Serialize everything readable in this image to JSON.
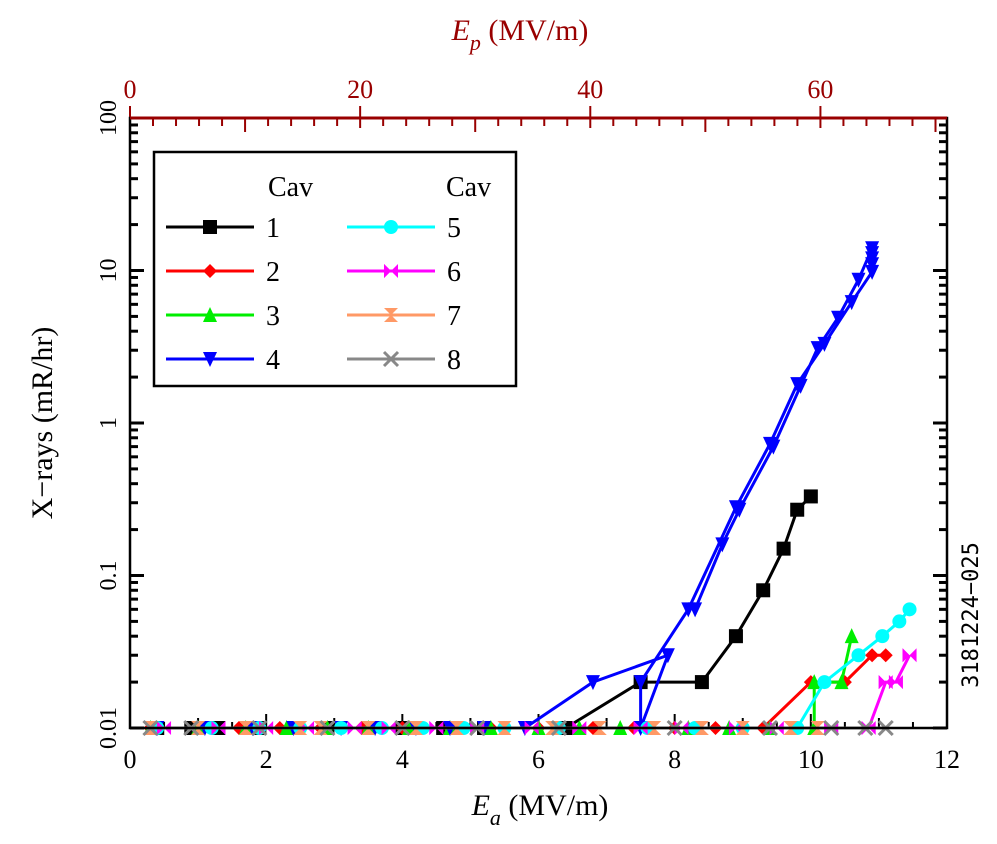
{
  "chart_data": {
    "type": "line",
    "title": "",
    "xlabel": "E_a (MV/m)",
    "xlabel_main": "E",
    "xlabel_sub": "a",
    "xlabel_units": " (MV/m)",
    "x2label_main": "E",
    "x2label_sub": "p",
    "x2label_units": " (MV/m)",
    "ylabel": "X−rays (mR/hr)",
    "xlim": [
      0,
      12
    ],
    "x2lim": [
      0,
      71
    ],
    "ylim": [
      0.01,
      100
    ],
    "yscale": "log",
    "xticks": [
      "0",
      "2",
      "4",
      "6",
      "8",
      "10",
      "12"
    ],
    "x2ticks": [
      "0",
      "20",
      "40",
      "60"
    ],
    "yticks": [
      "0.01",
      "0.1",
      "1",
      "10",
      "100"
    ],
    "annotation": "3181224−025",
    "legend": {
      "header_left": "Cav",
      "header_right": "Cav",
      "position": "upper-left"
    },
    "series": [
      {
        "name": "1",
        "color": "#000000",
        "marker": "square",
        "x": [
          0.4,
          0.9,
          1.3,
          1.9,
          2.4,
          2.9,
          3.5,
          4.0,
          4.6,
          5.2,
          6.4,
          7.5,
          8.4,
          8.9,
          9.3,
          9.6,
          9.8,
          10.0
        ],
        "y": [
          0.01,
          0.01,
          0.01,
          0.01,
          0.01,
          0.01,
          0.01,
          0.01,
          0.01,
          0.01,
          0.01,
          0.02,
          0.02,
          0.04,
          0.08,
          0.15,
          0.27,
          0.33
        ]
      },
      {
        "name": "2",
        "color": "#ff0000",
        "marker": "diamond",
        "x": [
          0.3,
          1.0,
          1.6,
          2.2,
          2.8,
          3.4,
          4.0,
          4.7,
          5.3,
          6.0,
          6.8,
          7.4,
          8.0,
          8.6,
          9.3,
          10.0,
          10.5,
          10.9,
          11.1
        ],
        "y": [
          0.01,
          0.01,
          0.01,
          0.01,
          0.01,
          0.01,
          0.01,
          0.01,
          0.01,
          0.01,
          0.01,
          0.01,
          0.01,
          0.01,
          0.01,
          0.02,
          0.02,
          0.03,
          0.03
        ]
      },
      {
        "name": "3",
        "color": "#00ee00",
        "marker": "triangle-up",
        "x": [
          0.3,
          1.0,
          1.7,
          2.3,
          2.9,
          3.5,
          4.1,
          4.7,
          5.3,
          6.0,
          6.6,
          7.2,
          8.2,
          8.8,
          9.4,
          10.05,
          10.05,
          10.45,
          10.6
        ],
        "y": [
          0.01,
          0.01,
          0.01,
          0.01,
          0.01,
          0.01,
          0.01,
          0.01,
          0.01,
          0.01,
          0.01,
          0.01,
          0.01,
          0.01,
          0.01,
          0.01,
          0.02,
          0.02,
          0.04
        ]
      },
      {
        "name": "4",
        "color": "#0000ff",
        "marker": "triangle-down",
        "x": [
          0.4,
          1.1,
          1.8,
          2.4,
          3.1,
          3.6,
          4.2,
          4.7,
          5.2,
          5.8,
          6.8,
          7.9,
          7.5,
          7.5,
          8.2,
          8.9,
          9.4,
          9.8,
          10.2,
          10.6,
          10.9,
          10.9,
          10.9,
          10.9,
          10.9,
          10.7,
          10.4,
          10.1,
          9.85,
          9.45,
          8.95,
          8.7,
          8.3
        ],
        "y": [
          0.01,
          0.01,
          0.01,
          0.01,
          0.01,
          0.01,
          0.01,
          0.01,
          0.01,
          0.01,
          0.02,
          0.03,
          0.01,
          0.02,
          0.06,
          0.28,
          0.73,
          1.8,
          3.3,
          6.2,
          9.8,
          11,
          12,
          13,
          14,
          8.7,
          4.9,
          3.1,
          1.75,
          0.7,
          0.27,
          0.16,
          0.06
        ]
      },
      {
        "name": "5",
        "color": "#00ffff",
        "marker": "circle",
        "x": [
          0.4,
          1.2,
          1.9,
          2.5,
          3.1,
          3.7,
          4.3,
          4.9,
          5.5,
          6.3,
          7.6,
          8.3,
          9.0,
          9.8,
          10.2,
          10.7,
          11.05,
          11.3,
          11.45
        ],
        "y": [
          0.01,
          0.01,
          0.01,
          0.01,
          0.01,
          0.01,
          0.01,
          0.01,
          0.01,
          0.01,
          0.01,
          0.01,
          0.01,
          0.01,
          0.02,
          0.03,
          0.04,
          0.05,
          0.06
        ]
      },
      {
        "name": "6",
        "color": "#ff00ff",
        "marker": "bowtie",
        "x": [
          0.5,
          1.3,
          2.0,
          2.6,
          3.3,
          3.8,
          4.5,
          5.1,
          5.9,
          6.6,
          7.5,
          8.1,
          8.9,
          9.5,
          10.3,
          10.85,
          11.1,
          11.25,
          11.45
        ],
        "y": [
          0.01,
          0.01,
          0.01,
          0.01,
          0.01,
          0.01,
          0.01,
          0.01,
          0.01,
          0.01,
          0.01,
          0.01,
          0.01,
          0.01,
          0.01,
          0.01,
          0.02,
          0.02,
          0.03
        ]
      },
      {
        "name": "7",
        "color": "#ff9966",
        "marker": "hourglass",
        "x": [
          0.3,
          1.0,
          1.7,
          2.5,
          2.8,
          3.5,
          4.2,
          4.8,
          5.5,
          6.2,
          6.9,
          7.7,
          8.4,
          9.0,
          9.7,
          10.1
        ],
        "y": [
          0.01,
          0.01,
          0.01,
          0.01,
          0.01,
          0.01,
          0.01,
          0.01,
          0.01,
          0.01,
          0.01,
          0.01,
          0.01,
          0.01,
          0.01,
          0.01
        ]
      },
      {
        "name": "8",
        "color": "#888888",
        "marker": "x",
        "x": [
          0.3,
          0.9,
          1.9,
          2.9,
          4.0,
          5.1,
          6.3,
          8.0,
          9.4,
          10.3,
          10.8,
          11.1
        ],
        "y": [
          0.01,
          0.01,
          0.01,
          0.01,
          0.01,
          0.01,
          0.01,
          0.01,
          0.01,
          0.01,
          0.01,
          0.01
        ]
      }
    ]
  }
}
